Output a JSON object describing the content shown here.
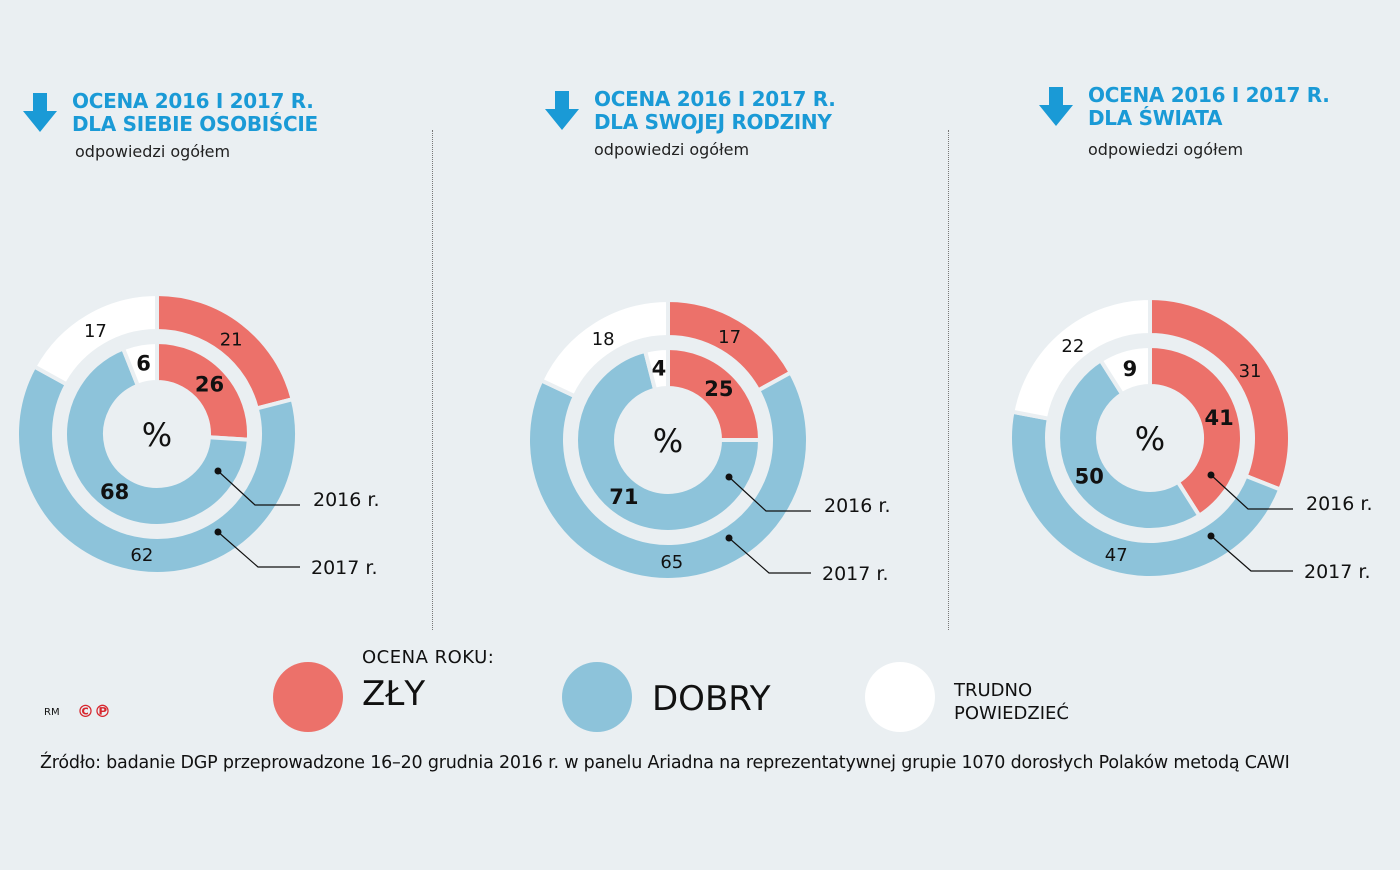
{
  "colors": {
    "zly": "#ec716a",
    "dobry": "#8dc3da",
    "trudno": "#ffffff",
    "title": "#1a9ad6",
    "background": "#eaeff2"
  },
  "chart_data": [
    {
      "type": "pie",
      "title": "OCENA 2016 I 2017 R. DLA SIEBIE OSOBIŚCIE",
      "title_lines": [
        "OCENA 2016 I 2017 R.",
        "DLA SIEBIE OSOBIŚCIE"
      ],
      "subtitle": "odpowiedzi ogółem",
      "center_label": "%",
      "categories": [
        "ZŁY",
        "DOBRY",
        "TRUDNO POWIEDZIEĆ"
      ],
      "series": [
        {
          "name": "2016 r.",
          "ring": "inner",
          "values": [
            26,
            68,
            6
          ]
        },
        {
          "name": "2017 r.",
          "ring": "outer",
          "values": [
            21,
            62,
            17
          ]
        }
      ]
    },
    {
      "type": "pie",
      "title": "OCENA 2016 I 2017 R. DLA SWOJEJ RODZINY",
      "title_lines": [
        "OCENA 2016 I 2017 R.",
        "DLA SWOJEJ RODZINY"
      ],
      "subtitle": "odpowiedzi ogółem",
      "center_label": "%",
      "categories": [
        "ZŁY",
        "DOBRY",
        "TRUDNO POWIEDZIEĆ"
      ],
      "series": [
        {
          "name": "2016 r.",
          "ring": "inner",
          "values": [
            25,
            71,
            4
          ]
        },
        {
          "name": "2017 r.",
          "ring": "outer",
          "values": [
            17,
            65,
            18
          ]
        }
      ]
    },
    {
      "type": "pie",
      "title": "OCENA 2016 I 2017 R. DLA ŚWIATA",
      "title_lines": [
        "OCENA 2016 I 2017 R.",
        "DLA ŚWIATA"
      ],
      "subtitle": "odpowiedzi ogółem",
      "center_label": "%",
      "categories": [
        "ZŁY",
        "DOBRY",
        "TRUDNO POWIEDZIEĆ"
      ],
      "series": [
        {
          "name": "2016 r.",
          "ring": "inner",
          "values": [
            41,
            50,
            9
          ]
        },
        {
          "name": "2017 r.",
          "ring": "outer",
          "values": [
            31,
            47,
            22
          ]
        }
      ]
    }
  ],
  "legend": {
    "title": "OCENA ROKU:",
    "items": [
      {
        "label": "ZŁY",
        "color": "#ec716a"
      },
      {
        "label": "DOBRY",
        "color": "#8dc3da"
      },
      {
        "label_lines": [
          "TRUDNO",
          "POWIEDZIEĆ"
        ],
        "color": "#ffffff"
      }
    ]
  },
  "credit": {
    "initials": "RM",
    "marks": "©℗"
  },
  "source": "Źródło: badanie DGP przeprowadzone 16–20 grudnia 2016 r. w panelu Ariadna na reprezentatywnej grupie 1070 dorosłych Polaków metodą CAWI"
}
